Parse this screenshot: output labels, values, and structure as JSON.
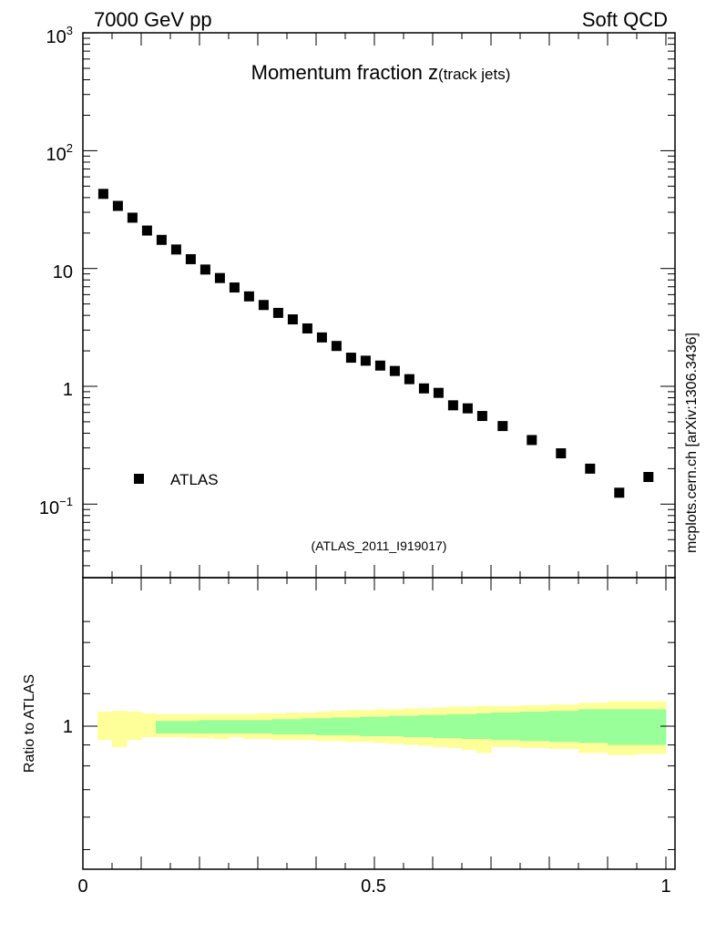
{
  "header": {
    "left": "7000 GeV pp",
    "right": "Soft QCD"
  },
  "side_label": "mcplots.cern.ch [arXiv:1306.3436]",
  "analysis_tag": "(ATLAS_2011_I919017)",
  "colors": {
    "data_marker": "#000000",
    "band_inner": "#99ff99",
    "band_outer": "#ffff99",
    "analysis_tag": "#999999",
    "side_label": "#444444"
  },
  "chart_data": [
    {
      "type": "scatter",
      "panel": "main",
      "title_main": "Momentum fraction z",
      "title_sub": "(track jets)",
      "yscale": "log",
      "ylim": [
        0.025,
        1000
      ],
      "xlim": [
        0,
        1
      ],
      "y_tick_labels": [
        "10^-1",
        "1",
        "10",
        "10^2",
        "10^3"
      ],
      "legend": {
        "label": "ATLAS",
        "placement": "bottom-left"
      },
      "series": [
        {
          "name": "ATLAS",
          "x": [
            0.035,
            0.06,
            0.085,
            0.11,
            0.135,
            0.16,
            0.185,
            0.21,
            0.235,
            0.26,
            0.285,
            0.31,
            0.335,
            0.36,
            0.385,
            0.41,
            0.435,
            0.46,
            0.485,
            0.51,
            0.535,
            0.56,
            0.585,
            0.61,
            0.635,
            0.66,
            0.685,
            0.72,
            0.77,
            0.82,
            0.87,
            0.92,
            0.97
          ],
          "y": [
            43,
            34,
            27,
            21,
            17.5,
            14.5,
            12,
            9.8,
            8.3,
            6.9,
            5.8,
            4.9,
            4.2,
            3.7,
            3.1,
            2.6,
            2.2,
            1.75,
            1.65,
            1.5,
            1.35,
            1.15,
            0.96,
            0.88,
            0.69,
            0.65,
            0.56,
            0.46,
            0.35,
            0.27,
            0.2,
            0.125,
            0.17
          ]
        }
      ]
    },
    {
      "type": "area",
      "panel": "ratio",
      "ylabel": "Ratio to ATLAS",
      "yscale": "log",
      "ylim": [
        0.5,
        1.85
      ],
      "xlim": [
        0,
        1
      ],
      "x_tick_labels": [
        "0",
        "0.5",
        "1"
      ],
      "y_tick_labels": [
        "1"
      ],
      "bin_edges": [
        0.025,
        0.05,
        0.075,
        0.1,
        0.125,
        0.15,
        0.175,
        0.2,
        0.225,
        0.25,
        0.275,
        0.3,
        0.325,
        0.35,
        0.375,
        0.4,
        0.425,
        0.45,
        0.475,
        0.5,
        0.525,
        0.55,
        0.575,
        0.6,
        0.625,
        0.65,
        0.675,
        0.7,
        0.75,
        0.8,
        0.85,
        0.9,
        0.95,
        1.0
      ],
      "series": [
        {
          "name": "inner band",
          "lo": [
            1.0,
            1.0,
            1.0,
            1.0,
            0.96,
            0.96,
            0.96,
            0.96,
            0.96,
            0.96,
            0.96,
            0.96,
            0.955,
            0.955,
            0.955,
            0.95,
            0.95,
            0.95,
            0.945,
            0.945,
            0.945,
            0.94,
            0.94,
            0.935,
            0.935,
            0.93,
            0.93,
            0.925,
            0.92,
            0.915,
            0.91,
            0.9,
            0.9
          ],
          "hi": [
            1.0,
            1.0,
            1.0,
            1.0,
            1.03,
            1.03,
            1.03,
            1.035,
            1.035,
            1.035,
            1.035,
            1.035,
            1.04,
            1.04,
            1.045,
            1.045,
            1.05,
            1.05,
            1.055,
            1.055,
            1.06,
            1.06,
            1.065,
            1.065,
            1.07,
            1.07,
            1.075,
            1.08,
            1.085,
            1.09,
            1.1,
            1.1,
            1.1
          ]
        },
        {
          "name": "outer band",
          "lo": [
            0.925,
            0.89,
            0.925,
            0.94,
            0.94,
            0.94,
            0.935,
            0.935,
            0.93,
            0.94,
            0.93,
            0.93,
            0.925,
            0.925,
            0.925,
            0.92,
            0.92,
            0.915,
            0.915,
            0.91,
            0.905,
            0.9,
            0.895,
            0.89,
            0.885,
            0.875,
            0.86,
            0.89,
            0.885,
            0.88,
            0.86,
            0.85,
            0.855
          ],
          "hi": [
            1.085,
            1.09,
            1.085,
            1.075,
            1.07,
            1.07,
            1.07,
            1.07,
            1.07,
            1.07,
            1.07,
            1.075,
            1.075,
            1.08,
            1.08,
            1.085,
            1.09,
            1.095,
            1.095,
            1.1,
            1.1,
            1.105,
            1.105,
            1.11,
            1.115,
            1.115,
            1.12,
            1.12,
            1.125,
            1.13,
            1.14,
            1.15,
            1.15
          ]
        }
      ]
    }
  ]
}
